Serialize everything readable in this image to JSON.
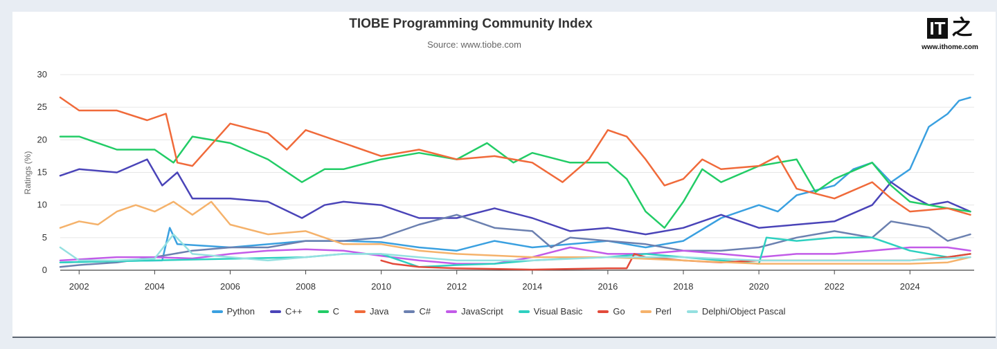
{
  "chart_data": {
    "type": "line",
    "title": "TIOBE Programming Community Index",
    "subtitle": "Source: www.tiobe.com",
    "ylabel": "Ratings (%)",
    "xlabel": "",
    "xlim": [
      2001.5,
      2025.7
    ],
    "ylim": [
      0,
      30
    ],
    "yticks": [
      0,
      5,
      10,
      15,
      20,
      25,
      30
    ],
    "xticks": [
      2002,
      2004,
      2006,
      2008,
      2010,
      2012,
      2014,
      2016,
      2018,
      2020,
      2022,
      2024
    ],
    "grid": true,
    "legend_position": "bottom",
    "series": [
      {
        "name": "Python",
        "color": "#3aa0e0",
        "x": [
          2001.5,
          2003,
          2004.2,
          2004.4,
          2004.6,
          2006,
          2008,
          2009,
          2010,
          2011,
          2012,
          2013,
          2014,
          2015,
          2016,
          2017,
          2018,
          2019,
          2019.5,
          2020,
          2020.5,
          2021,
          2022,
          2022.5,
          2023,
          2023.5,
          2024,
          2024.5,
          2025,
          2025.3,
          2025.6
        ],
        "values": [
          1.2,
          1.4,
          1.5,
          6.5,
          4.0,
          3.5,
          4.5,
          4.5,
          4.3,
          3.5,
          3.0,
          4.5,
          3.5,
          4.0,
          4.5,
          3.5,
          4.5,
          8.0,
          9.0,
          10.0,
          9.0,
          11.5,
          13.0,
          15.5,
          16.5,
          13.5,
          15.5,
          22.0,
          24.0,
          26.0,
          26.5
        ]
      },
      {
        "name": "C++",
        "color": "#4a44b8",
        "x": [
          2001.5,
          2002,
          2003,
          2003.8,
          2004.2,
          2004.6,
          2005,
          2006,
          2007,
          2007.9,
          2008.5,
          2009,
          2010,
          2011,
          2012,
          2013,
          2014,
          2015,
          2016,
          2017,
          2018,
          2019,
          2020,
          2021,
          2022,
          2023,
          2023.5,
          2024,
          2024.5,
          2025,
          2025.6
        ],
        "values": [
          14.5,
          15.5,
          15.0,
          17.0,
          13.0,
          15.0,
          11.0,
          11.0,
          10.5,
          8.0,
          10.0,
          10.5,
          10.0,
          8.0,
          8.0,
          9.5,
          8.0,
          6.0,
          6.5,
          5.5,
          6.5,
          8.5,
          6.5,
          7.0,
          7.5,
          10.0,
          13.5,
          11.5,
          10.0,
          10.5,
          9.0
        ]
      },
      {
        "name": "C",
        "color": "#22cc66",
        "x": [
          2001.5,
          2002,
          2003,
          2004,
          2004.5,
          2005,
          2006,
          2007,
          2007.9,
          2008.5,
          2009,
          2010,
          2011,
          2012,
          2012.8,
          2013.5,
          2014,
          2015,
          2016,
          2016.5,
          2017,
          2017.5,
          2018,
          2018.5,
          2019,
          2020,
          2021,
          2021.5,
          2022,
          2023,
          2023.5,
          2024,
          2025,
          2025.6
        ],
        "values": [
          20.5,
          20.5,
          18.5,
          18.5,
          16.5,
          20.5,
          19.5,
          17.0,
          13.5,
          15.5,
          15.5,
          17.0,
          18.0,
          17.0,
          19.5,
          16.5,
          18.0,
          16.5,
          16.5,
          14.0,
          9.0,
          6.5,
          10.5,
          15.5,
          13.5,
          16.0,
          17.0,
          12.0,
          14.0,
          16.5,
          13.0,
          10.5,
          9.5,
          9.0
        ]
      },
      {
        "name": "Java",
        "color": "#f06a3a",
        "x": [
          2001.5,
          2002,
          2003,
          2003.8,
          2004.3,
          2004.6,
          2005,
          2006,
          2007,
          2007.5,
          2008,
          2009,
          2010,
          2011,
          2012,
          2013,
          2014,
          2014.8,
          2015.5,
          2016,
          2016.5,
          2017,
          2017.5,
          2018,
          2018.5,
          2019,
          2020,
          2020.5,
          2021,
          2022,
          2023,
          2023.5,
          2024,
          2025,
          2025.6
        ],
        "values": [
          26.5,
          24.5,
          24.5,
          23.0,
          24.0,
          16.5,
          16.0,
          22.5,
          21.0,
          18.5,
          21.5,
          19.5,
          17.5,
          18.5,
          17.0,
          17.5,
          16.5,
          13.5,
          17.0,
          21.5,
          20.5,
          17.0,
          13.0,
          14.0,
          17.0,
          15.5,
          16.0,
          17.5,
          12.5,
          11.0,
          13.5,
          11.0,
          9.0,
          9.5,
          8.5
        ]
      },
      {
        "name": "C#",
        "color": "#6b80b0",
        "x": [
          2001.5,
          2002,
          2003,
          2004,
          2005,
          2006,
          2007,
          2008,
          2009,
          2010,
          2011,
          2012,
          2013,
          2014,
          2014.5,
          2015,
          2016,
          2017,
          2018,
          2019,
          2020,
          2021,
          2022,
          2022.5,
          2023,
          2023.5,
          2024,
          2024.5,
          2025,
          2025.6
        ],
        "values": [
          0.5,
          0.8,
          1.2,
          2.0,
          3.0,
          3.5,
          3.5,
          4.5,
          4.5,
          5.0,
          7.0,
          8.5,
          6.5,
          6.0,
          3.5,
          5.0,
          4.5,
          4.0,
          3.0,
          3.0,
          3.5,
          5.0,
          6.0,
          5.5,
          5.0,
          7.5,
          7.0,
          6.5,
          4.5,
          5.5
        ]
      },
      {
        "name": "JavaScript",
        "color": "#c25be8",
        "x": [
          2001.5,
          2003,
          2004,
          2005,
          2006,
          2007,
          2008,
          2009,
          2010,
          2011,
          2012,
          2013,
          2014,
          2015,
          2016,
          2017,
          2018,
          2019,
          2020,
          2021,
          2022,
          2023,
          2024,
          2025,
          2025.6
        ],
        "values": [
          1.5,
          2.0,
          2.0,
          1.8,
          2.5,
          3.0,
          3.2,
          3.0,
          2.2,
          1.5,
          1.0,
          1.0,
          2.0,
          3.5,
          2.5,
          2.5,
          3.0,
          2.5,
          2.0,
          2.5,
          2.5,
          3.0,
          3.5,
          3.5,
          3.0
        ]
      },
      {
        "name": "Visual Basic",
        "color": "#2ed0c0",
        "x": [
          2001.5,
          2008,
          2009,
          2010,
          2011,
          2012,
          2013,
          2014,
          2015,
          2016,
          2017,
          2018,
          2019,
          2020,
          2020.2,
          2021,
          2022,
          2023,
          2024,
          2025,
          2025.6
        ],
        "values": [
          1.2,
          2.0,
          2.5,
          2.5,
          0.5,
          0.8,
          1.0,
          1.5,
          1.8,
          2.0,
          2.5,
          2.0,
          1.5,
          1.0,
          5.0,
          4.5,
          5.0,
          5.0,
          3.0,
          2.0,
          2.5
        ]
      },
      {
        "name": "Go",
        "color": "#e24a3a",
        "x": [
          2010,
          2010.3,
          2011,
          2012,
          2013,
          2014,
          2015,
          2016,
          2016.5,
          2016.7,
          2017,
          2018,
          2019,
          2020,
          2021,
          2022,
          2023,
          2024,
          2025,
          2025.6
        ],
        "values": [
          1.5,
          1.0,
          0.5,
          0.3,
          0.2,
          0.1,
          0.2,
          0.3,
          0.3,
          2.5,
          2.0,
          1.5,
          1.2,
          1.5,
          1.5,
          1.5,
          1.5,
          1.5,
          2.0,
          2.5
        ]
      },
      {
        "name": "Perl",
        "color": "#f5b26b",
        "x": [
          2001.5,
          2002,
          2002.5,
          2003,
          2003.5,
          2004,
          2004.5,
          2005,
          2005.5,
          2006,
          2007,
          2008,
          2009,
          2010,
          2011,
          2012,
          2014,
          2016,
          2018,
          2020,
          2022,
          2024,
          2025,
          2025.6
        ],
        "values": [
          6.5,
          7.5,
          7.0,
          9.0,
          10.0,
          9.0,
          10.5,
          8.5,
          10.5,
          7.0,
          5.5,
          6.0,
          4.0,
          4.0,
          3.0,
          2.5,
          2.0,
          2.0,
          1.5,
          1.0,
          1.0,
          1.0,
          1.2,
          2.0
        ]
      },
      {
        "name": "Delphi/Object Pascal",
        "color": "#94e0e0",
        "x": [
          2001.5,
          2002,
          2003,
          2004,
          2004.5,
          2005,
          2006,
          2007,
          2008,
          2009,
          2010,
          2012,
          2014,
          2016,
          2018,
          2020,
          2022,
          2024,
          2025.6
        ],
        "values": [
          3.5,
          1.5,
          1.5,
          1.8,
          5.5,
          2.5,
          2.0,
          1.5,
          2.0,
          2.5,
          2.5,
          1.5,
          1.5,
          2.0,
          2.0,
          1.5,
          1.5,
          1.5,
          2.0
        ]
      }
    ]
  }
}
